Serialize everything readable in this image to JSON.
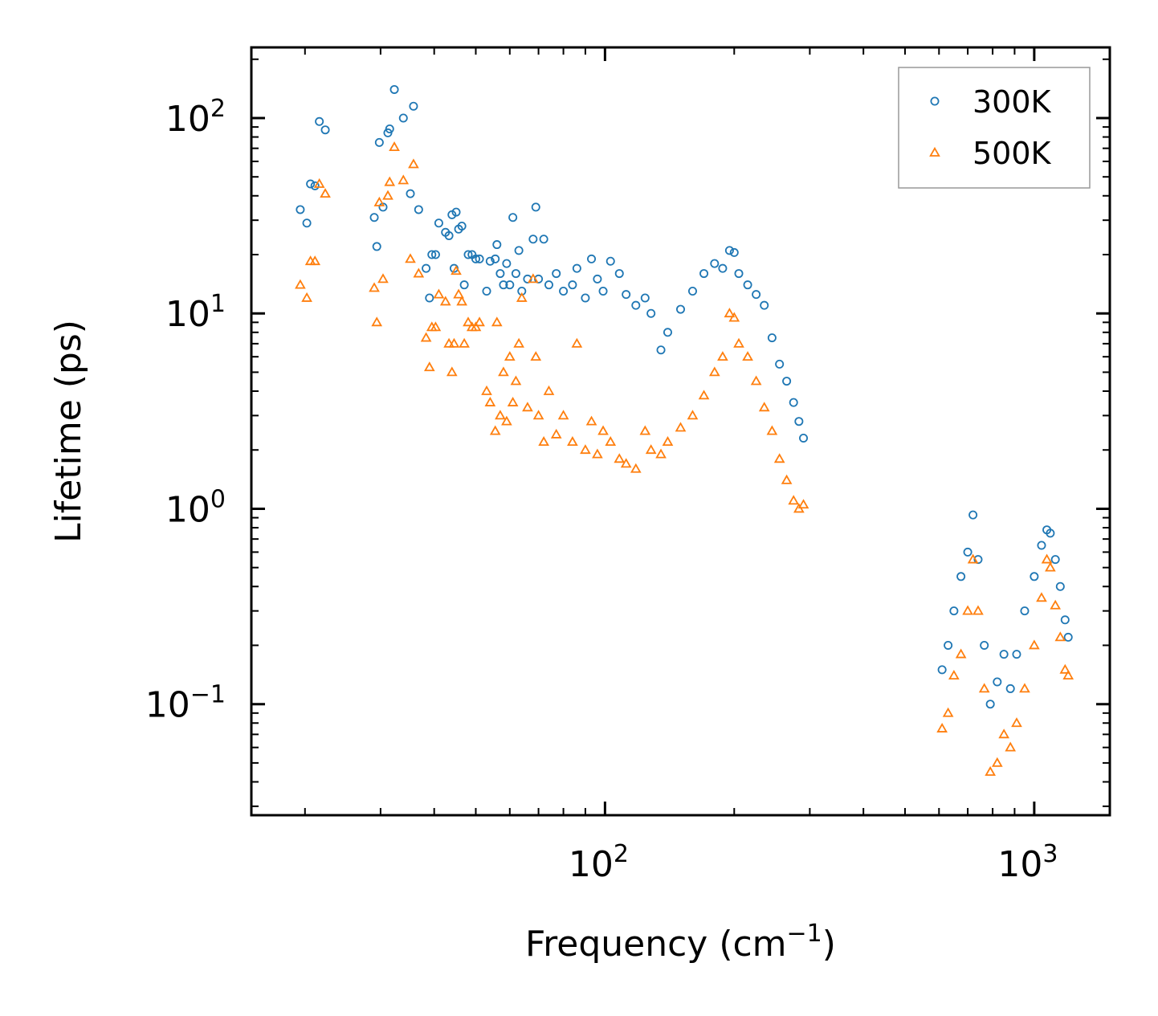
{
  "chart_data": {
    "type": "scatter",
    "title": "",
    "xlabel": "Frequency (cm",
    "xlabel_sup": "−1",
    "xlabel_suffix": ")",
    "ylabel": "Lifetime (ps)",
    "xscale": "log",
    "yscale": "log",
    "xlim": [
      15,
      1500
    ],
    "ylim": [
      0.027,
      230
    ],
    "legend_position": "top-right",
    "x_ticks": [
      {
        "value": 100,
        "base": "10",
        "exp": "2"
      },
      {
        "value": 1000,
        "base": "10",
        "exp": "3"
      }
    ],
    "y_ticks": [
      {
        "value": 100,
        "base": "10",
        "exp": "2"
      },
      {
        "value": 10,
        "base": "10",
        "exp": "1"
      },
      {
        "value": 1,
        "base": "10",
        "exp": "0"
      },
      {
        "value": 0.1,
        "base": "10",
        "exp": "−1"
      }
    ],
    "series": [
      {
        "name": "300K",
        "marker": "circle",
        "color": "#1f77b4",
        "points": [
          [
            19.5,
            34
          ],
          [
            20.2,
            29
          ],
          [
            20.6,
            46
          ],
          [
            21.1,
            45
          ],
          [
            21.6,
            96
          ],
          [
            22.3,
            87
          ],
          [
            29.0,
            31
          ],
          [
            29.4,
            22
          ],
          [
            29.8,
            75
          ],
          [
            30.4,
            35
          ],
          [
            31.2,
            84
          ],
          [
            31.5,
            88
          ],
          [
            32.3,
            140
          ],
          [
            33.9,
            100
          ],
          [
            35.2,
            41
          ],
          [
            35.8,
            115
          ],
          [
            36.8,
            34
          ],
          [
            38.3,
            17
          ],
          [
            39.0,
            12
          ],
          [
            39.5,
            20
          ],
          [
            40.3,
            20
          ],
          [
            41.0,
            29
          ],
          [
            42.5,
            26
          ],
          [
            43.3,
            25
          ],
          [
            44.0,
            32
          ],
          [
            44.5,
            17
          ],
          [
            45.0,
            33
          ],
          [
            45.6,
            27
          ],
          [
            46.4,
            28
          ],
          [
            47.0,
            14
          ],
          [
            48.0,
            20
          ],
          [
            49.0,
            20
          ],
          [
            50.0,
            19
          ],
          [
            51.0,
            19
          ],
          [
            53.0,
            13
          ],
          [
            54.0,
            18.5
          ],
          [
            55.5,
            19
          ],
          [
            56.0,
            22.5
          ],
          [
            57.0,
            16
          ],
          [
            58.0,
            14
          ],
          [
            59.0,
            18
          ],
          [
            60.0,
            14
          ],
          [
            61.0,
            31
          ],
          [
            62.0,
            16
          ],
          [
            63.0,
            21
          ],
          [
            64.0,
            13
          ],
          [
            66.0,
            15
          ],
          [
            68.0,
            24
          ],
          [
            69.0,
            35
          ],
          [
            70.0,
            15
          ],
          [
            72.0,
            24
          ],
          [
            74.0,
            14
          ],
          [
            77.0,
            16
          ],
          [
            80.0,
            13
          ],
          [
            84.0,
            14
          ],
          [
            86.0,
            17
          ],
          [
            90.0,
            12
          ],
          [
            93.0,
            19
          ],
          [
            96.0,
            15
          ],
          [
            99.0,
            13
          ],
          [
            103.0,
            18.5
          ],
          [
            108.0,
            16
          ],
          [
            112.0,
            12.5
          ],
          [
            118.0,
            11
          ],
          [
            124.0,
            12
          ],
          [
            128.0,
            10
          ],
          [
            135.0,
            6.5
          ],
          [
            140.0,
            8
          ],
          [
            150.0,
            10.5
          ],
          [
            160.0,
            13
          ],
          [
            170.0,
            16
          ],
          [
            180.0,
            18
          ],
          [
            188.0,
            17
          ],
          [
            195.0,
            21
          ],
          [
            200.0,
            20.5
          ],
          [
            205.0,
            16
          ],
          [
            215.0,
            14
          ],
          [
            225.0,
            12.5
          ],
          [
            235.0,
            11
          ],
          [
            245.0,
            7.5
          ],
          [
            255.0,
            5.5
          ],
          [
            265.0,
            4.5
          ],
          [
            275.0,
            3.5
          ],
          [
            283.0,
            2.8
          ],
          [
            290.0,
            2.3
          ],
          [
            610.0,
            0.15
          ],
          [
            630.0,
            0.2
          ],
          [
            650.0,
            0.3
          ],
          [
            675.0,
            0.45
          ],
          [
            700.0,
            0.6
          ],
          [
            720.0,
            0.93
          ],
          [
            740.0,
            0.55
          ],
          [
            765.0,
            0.2
          ],
          [
            790.0,
            0.1
          ],
          [
            820.0,
            0.13
          ],
          [
            850.0,
            0.18
          ],
          [
            880.0,
            0.12
          ],
          [
            910.0,
            0.18
          ],
          [
            950.0,
            0.3
          ],
          [
            1000.0,
            0.45
          ],
          [
            1040.0,
            0.65
          ],
          [
            1070.0,
            0.78
          ],
          [
            1090.0,
            0.75
          ],
          [
            1120.0,
            0.55
          ],
          [
            1150.0,
            0.4
          ],
          [
            1180.0,
            0.27
          ],
          [
            1200.0,
            0.22
          ]
        ]
      },
      {
        "name": "500K",
        "marker": "triangle",
        "color": "#ff7f0e",
        "points": [
          [
            19.5,
            14
          ],
          [
            20.2,
            12
          ],
          [
            20.6,
            18.5
          ],
          [
            21.1,
            18.5
          ],
          [
            21.6,
            46
          ],
          [
            22.3,
            41
          ],
          [
            29.0,
            13.5
          ],
          [
            29.4,
            9
          ],
          [
            29.8,
            37
          ],
          [
            30.4,
            15
          ],
          [
            31.2,
            40
          ],
          [
            31.5,
            47
          ],
          [
            32.3,
            71
          ],
          [
            33.9,
            48
          ],
          [
            35.2,
            19
          ],
          [
            35.8,
            58
          ],
          [
            36.8,
            16
          ],
          [
            38.3,
            7.5
          ],
          [
            39.0,
            5.3
          ],
          [
            39.5,
            8.5
          ],
          [
            40.3,
            8.5
          ],
          [
            41.0,
            12.5
          ],
          [
            42.5,
            11.5
          ],
          [
            43.3,
            7
          ],
          [
            44.0,
            5
          ],
          [
            44.5,
            7
          ],
          [
            45.0,
            16.5
          ],
          [
            45.6,
            12.5
          ],
          [
            46.4,
            11.5
          ],
          [
            47.0,
            7
          ],
          [
            48.0,
            9
          ],
          [
            49.0,
            8.5
          ],
          [
            50.0,
            8.5
          ],
          [
            51.0,
            9
          ],
          [
            53.0,
            4
          ],
          [
            54.0,
            3.5
          ],
          [
            55.5,
            2.5
          ],
          [
            56.0,
            9
          ],
          [
            57.0,
            3
          ],
          [
            58.0,
            5
          ],
          [
            59.0,
            2.8
          ],
          [
            60.0,
            6
          ],
          [
            61.0,
            3.5
          ],
          [
            62.0,
            4.5
          ],
          [
            63.0,
            7
          ],
          [
            64.0,
            12
          ],
          [
            66.0,
            3.3
          ],
          [
            68.0,
            15
          ],
          [
            69.0,
            6
          ],
          [
            70.0,
            3
          ],
          [
            72.0,
            2.2
          ],
          [
            74.0,
            4
          ],
          [
            77.0,
            2.4
          ],
          [
            80.0,
            3
          ],
          [
            84.0,
            2.2
          ],
          [
            86.0,
            7
          ],
          [
            90.0,
            2
          ],
          [
            93.0,
            2.8
          ],
          [
            96.0,
            1.9
          ],
          [
            99.0,
            2.5
          ],
          [
            103.0,
            2.2
          ],
          [
            108.0,
            1.8
          ],
          [
            112.0,
            1.7
          ],
          [
            118.0,
            1.6
          ],
          [
            124.0,
            2.5
          ],
          [
            128.0,
            2
          ],
          [
            135.0,
            1.9
          ],
          [
            140.0,
            2.2
          ],
          [
            150.0,
            2.6
          ],
          [
            160.0,
            3
          ],
          [
            170.0,
            3.8
          ],
          [
            180.0,
            5
          ],
          [
            188.0,
            6
          ],
          [
            195.0,
            10
          ],
          [
            200.0,
            9.5
          ],
          [
            205.0,
            7
          ],
          [
            215.0,
            6
          ],
          [
            225.0,
            4.5
          ],
          [
            235.0,
            3.3
          ],
          [
            245.0,
            2.5
          ],
          [
            255.0,
            1.8
          ],
          [
            265.0,
            1.4
          ],
          [
            275.0,
            1.1
          ],
          [
            283.0,
            1.0
          ],
          [
            290.0,
            1.05
          ],
          [
            610.0,
            0.075
          ],
          [
            630.0,
            0.09
          ],
          [
            650.0,
            0.14
          ],
          [
            675.0,
            0.18
          ],
          [
            700.0,
            0.3
          ],
          [
            720.0,
            0.55
          ],
          [
            740.0,
            0.3
          ],
          [
            765.0,
            0.12
          ],
          [
            790.0,
            0.045
          ],
          [
            820.0,
            0.05
          ],
          [
            850.0,
            0.07
          ],
          [
            880.0,
            0.06
          ],
          [
            910.0,
            0.08
          ],
          [
            950.0,
            0.12
          ],
          [
            1000.0,
            0.2
          ],
          [
            1040.0,
            0.35
          ],
          [
            1070.0,
            0.55
          ],
          [
            1090.0,
            0.5
          ],
          [
            1120.0,
            0.32
          ],
          [
            1150.0,
            0.22
          ],
          [
            1180.0,
            0.15
          ],
          [
            1200.0,
            0.14
          ]
        ]
      }
    ]
  }
}
